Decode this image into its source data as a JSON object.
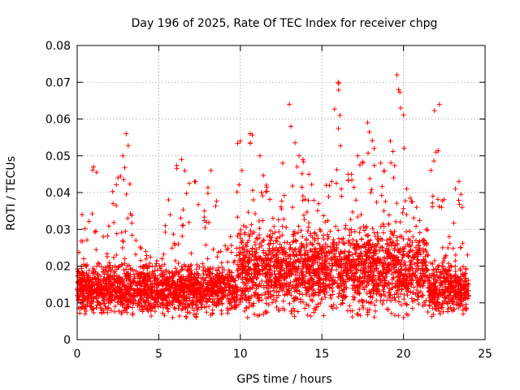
{
  "chart_data": {
    "type": "scatter",
    "title": "Day 196 of 2025, Rate Of TEC Index for receiver chpg",
    "xlabel": "GPS time / hours",
    "ylabel": "ROTI / TECUs",
    "xlim": [
      0,
      25
    ],
    "ylim": [
      0,
      0.08
    ],
    "x_ticks": [
      0,
      5,
      10,
      15,
      20,
      25
    ],
    "x_tick_labels": [
      "0",
      "5",
      "10",
      "15",
      "20",
      "25"
    ],
    "y_ticks": [
      0,
      0.01,
      0.02,
      0.03,
      0.04,
      0.05,
      0.06,
      0.07,
      0.08
    ],
    "y_tick_labels": [
      "0",
      "0.01",
      "0.02",
      "0.03",
      "0.04",
      "0.05",
      "0.06",
      "0.07",
      "0.08"
    ],
    "grid": true,
    "marker": "+",
    "marker_color": "#ff0000",
    "series": [
      {
        "x": [
          0.0,
          0.1,
          0.2,
          0.3,
          0.4,
          0.5,
          0.6,
          0.8,
          1.0,
          1.2,
          1.4,
          1.6,
          1.8,
          2.0,
          2.2,
          2.4,
          2.5,
          2.6,
          2.8,
          3.0,
          3.1,
          3.2,
          3.4,
          3.6,
          3.8,
          4.0,
          4.2,
          4.4,
          4.6,
          4.8,
          5.0,
          5.2,
          5.4,
          5.6,
          5.8,
          6.0,
          6.2,
          6.4,
          6.6,
          6.8,
          7.0,
          7.2,
          7.4,
          7.6,
          7.8,
          8.0,
          8.2,
          8.4,
          8.6,
          8.8,
          9.0,
          9.2,
          9.4,
          9.6,
          9.8,
          10.0,
          10.1,
          10.2,
          10.4,
          10.6,
          10.8,
          11.0,
          11.2,
          11.4,
          11.6,
          11.8,
          12.0,
          12.2,
          12.4,
          12.6,
          12.8,
          13.0,
          13.1,
          13.2,
          13.4,
          13.6,
          13.8,
          14.0,
          14.2,
          14.4,
          14.6,
          14.8,
          15.0,
          15.2,
          15.4,
          15.6,
          15.8,
          16.0,
          16.1,
          16.2,
          16.4,
          16.6,
          16.8,
          17.0,
          17.2,
          17.4,
          17.6,
          17.8,
          18.0,
          18.2,
          18.4,
          18.6,
          18.8,
          19.0,
          19.2,
          19.4,
          19.6,
          19.7,
          19.8,
          20.0,
          20.2,
          20.4,
          20.6,
          20.8,
          21.0,
          21.2,
          21.4,
          21.6,
          21.8,
          22.0,
          22.2,
          22.4,
          22.6,
          22.8,
          23.0,
          23.2,
          23.4,
          23.6,
          23.8,
          24.0
        ],
        "y": [
          0.012,
          0.018,
          0.01,
          0.034,
          0.022,
          0.015,
          0.009,
          0.014,
          0.047,
          0.02,
          0.013,
          0.028,
          0.011,
          0.017,
          0.037,
          0.023,
          0.044,
          0.012,
          0.05,
          0.056,
          0.033,
          0.014,
          0.019,
          0.027,
          0.01,
          0.016,
          0.024,
          0.012,
          0.02,
          0.009,
          0.015,
          0.022,
          0.031,
          0.038,
          0.017,
          0.011,
          0.026,
          0.049,
          0.014,
          0.02,
          0.013,
          0.043,
          0.018,
          0.01,
          0.035,
          0.022,
          0.046,
          0.015,
          0.012,
          0.024,
          0.019,
          0.016,
          0.028,
          0.021,
          0.013,
          0.054,
          0.046,
          0.031,
          0.024,
          0.056,
          0.038,
          0.02,
          0.05,
          0.027,
          0.042,
          0.017,
          0.033,
          0.025,
          0.015,
          0.048,
          0.022,
          0.064,
          0.058,
          0.036,
          0.019,
          0.05,
          0.028,
          0.014,
          0.045,
          0.026,
          0.018,
          0.037,
          0.011,
          0.032,
          0.024,
          0.043,
          0.016,
          0.07,
          0.061,
          0.039,
          0.022,
          0.045,
          0.03,
          0.018,
          0.05,
          0.034,
          0.026,
          0.059,
          0.04,
          0.052,
          0.029,
          0.048,
          0.035,
          0.022,
          0.054,
          0.044,
          0.072,
          0.068,
          0.032,
          0.024,
          0.041,
          0.027,
          0.018,
          0.036,
          0.015,
          0.021,
          0.03,
          0.012,
          0.039,
          0.051,
          0.064,
          0.025,
          0.016,
          0.028,
          0.011,
          0.023,
          0.043,
          0.036,
          0.018,
          0.012
        ],
        "y_min_envelope": [
          0.007,
          0.006,
          0.006,
          0.005,
          0.005,
          0.005,
          0.006,
          0.005,
          0.006,
          0.005,
          0.006,
          0.004,
          0.005,
          0.005,
          0.004,
          0.005,
          0.006,
          0.005,
          0.004,
          0.005,
          0.006,
          0.006,
          0.005,
          0.005,
          0.003,
          0.005,
          0.006,
          0.005,
          0.007
        ]
      }
    ]
  }
}
